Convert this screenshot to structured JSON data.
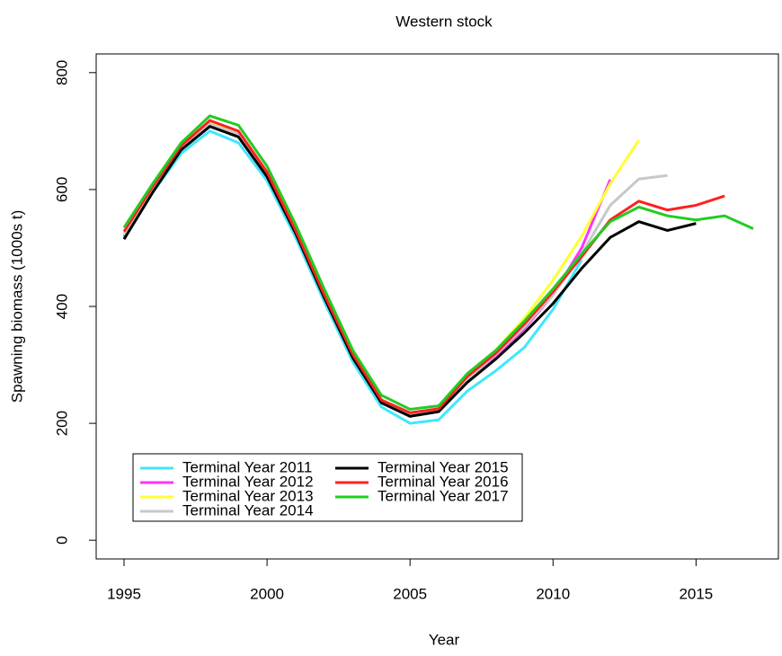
{
  "chart_data": {
    "type": "line",
    "title": "Western stock",
    "x_label": "Year",
    "y_label": "Spawning biomass (1000s t)",
    "x": [
      1995,
      1996,
      1997,
      1998,
      1999,
      2000,
      2001,
      2002,
      2003,
      2004,
      2005,
      2006,
      2007,
      2008,
      2009,
      2010,
      2011,
      2012,
      2013,
      2014,
      2015,
      2016,
      2017
    ],
    "series": [
      {
        "name": "Terminal Year 2011",
        "color": "#3fe7ff",
        "values": [
          518,
          595,
          662,
          700,
          680,
          615,
          518,
          408,
          305,
          228,
          200,
          206,
          255,
          290,
          330,
          395,
          480,
          null,
          null,
          null,
          null,
          null,
          null
        ]
      },
      {
        "name": "Terminal Year 2012",
        "color": "#ff33ff",
        "values": [
          520,
          600,
          670,
          712,
          694,
          624,
          527,
          417,
          314,
          236,
          213,
          221,
          272,
          315,
          362,
          420,
          500,
          617,
          null,
          null,
          null,
          null,
          null
        ]
      },
      {
        "name": "Terminal Year 2013",
        "color": "#ffff33",
        "values": [
          525,
          603,
          674,
          715,
          698,
          628,
          530,
          420,
          318,
          240,
          216,
          224,
          280,
          325,
          380,
          445,
          520,
          610,
          685,
          null,
          null,
          null,
          null
        ]
      },
      {
        "name": "Terminal Year 2014",
        "color": "#c8c8c8",
        "values": [
          522,
          600,
          672,
          712,
          695,
          625,
          528,
          418,
          315,
          237,
          215,
          222,
          275,
          318,
          365,
          420,
          490,
          573,
          618,
          624,
          null,
          null,
          null
        ]
      },
      {
        "name": "Terminal Year 2015",
        "color": "#000000",
        "values": [
          515,
          595,
          668,
          708,
          690,
          622,
          525,
          415,
          312,
          235,
          212,
          220,
          270,
          310,
          355,
          405,
          465,
          518,
          545,
          530,
          542,
          null,
          null
        ]
      },
      {
        "name": "Terminal Year 2016",
        "color": "#ff2020",
        "values": [
          528,
          605,
          675,
          718,
          700,
          630,
          530,
          420,
          318,
          240,
          218,
          225,
          280,
          320,
          370,
          425,
          485,
          548,
          580,
          565,
          573,
          589,
          null
        ]
      },
      {
        "name": "Terminal Year 2017",
        "color": "#22cc22",
        "values": [
          535,
          610,
          680,
          726,
          710,
          640,
          540,
          430,
          325,
          248,
          224,
          230,
          285,
          325,
          375,
          430,
          490,
          545,
          570,
          555,
          548,
          555,
          533
        ]
      }
    ],
    "xlim": [
      1994.12,
      2017.88
    ],
    "ylim": [
      -32,
      832
    ],
    "xticks": [
      1995,
      2000,
      2005,
      2010,
      2015
    ],
    "yticks": [
      0,
      200,
      400,
      600,
      800
    ],
    "legend": "bottom-left"
  }
}
